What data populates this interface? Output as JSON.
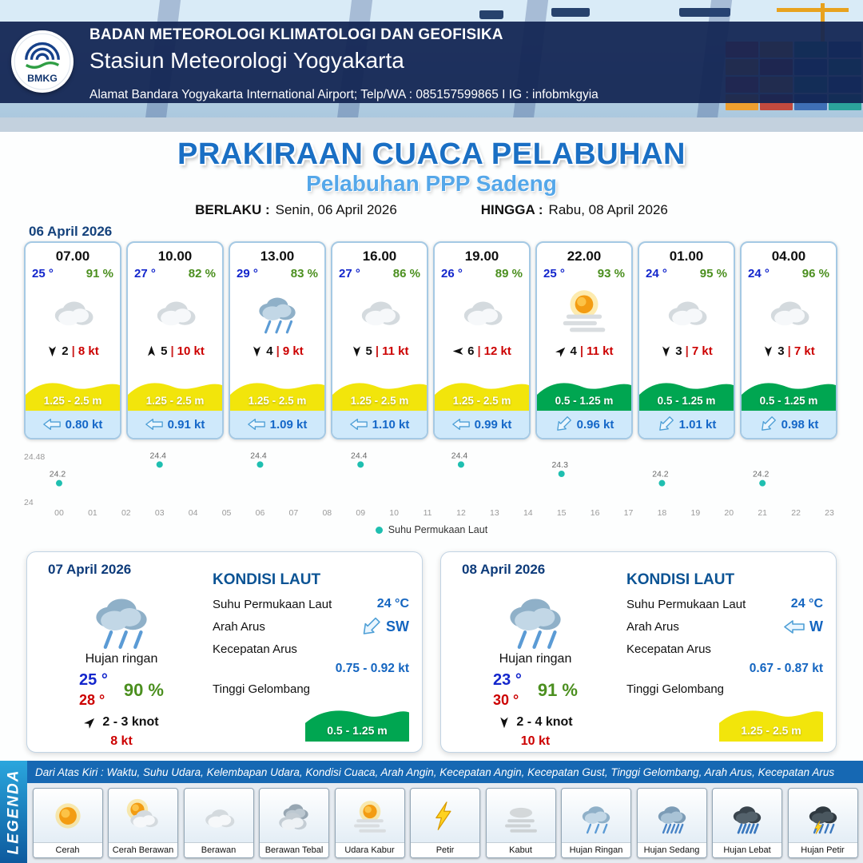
{
  "header": {
    "logo": "BMKG",
    "line1": "BADAN METEOROLOGI KLIMATOLOGI DAN GEOFISIKA",
    "line2": "Stasiun Meteorologi Yogyakarta",
    "line3": "Alamat Bandara Yogyakarta International Airport; Telp/WA : 085157599865 I IG : infobmkgyia"
  },
  "title": {
    "main": "PRAKIRAAN CUACA PELABUHAN",
    "subtitle": "Pelabuhan PPP Sadeng",
    "berlaku_label": "BERLAKU :",
    "berlaku_value": "Senin, 06 April 2026",
    "hingga_label": "HINGGA :",
    "hingga_value": "Rabu, 08 April 2026"
  },
  "ui": {
    "divider": "|"
  },
  "hourly_date": "06 April 2026",
  "hourly_cards": [
    {
      "time": "07.00",
      "temp": "25 °",
      "humidity": "91 %",
      "icon": "berawan",
      "wind_rot": 180,
      "gust": "2",
      "wind_speed": "8 kt",
      "wave": "1.25 - 2.5 m",
      "wave_color": "#f2e50b",
      "current": "0.80 kt",
      "current_rot": 0
    },
    {
      "time": "10.00",
      "temp": "27 °",
      "humidity": "82 %",
      "icon": "berawan",
      "wind_rot": 0,
      "gust": "5",
      "wind_speed": "10 kt",
      "wave": "1.25 - 2.5 m",
      "wave_color": "#f2e50b",
      "current": "0.91 kt",
      "current_rot": 0
    },
    {
      "time": "13.00",
      "temp": "29 °",
      "humidity": "83 %",
      "icon": "hujan-ringan",
      "wind_rot": 180,
      "gust": "4",
      "wind_speed": "9 kt",
      "wave": "1.25 - 2.5 m",
      "wave_color": "#f2e50b",
      "current": "1.09 kt",
      "current_rot": 0
    },
    {
      "time": "16.00",
      "temp": "27 °",
      "humidity": "86 %",
      "icon": "berawan",
      "wind_rot": 180,
      "gust": "5",
      "wind_speed": "11 kt",
      "wave": "1.25 - 2.5 m",
      "wave_color": "#f2e50b",
      "current": "1.10 kt",
      "current_rot": 0
    },
    {
      "time": "19.00",
      "temp": "26 °",
      "humidity": "89 %",
      "icon": "berawan",
      "wind_rot": 270,
      "gust": "6",
      "wind_speed": "12 kt",
      "wave": "1.25 - 2.5 m",
      "wave_color": "#f2e50b",
      "current": "0.99 kt",
      "current_rot": 0
    },
    {
      "time": "22.00",
      "temp": "25 °",
      "humidity": "93 %",
      "icon": "udara-kabur",
      "wind_rot": 45,
      "gust": "4",
      "wind_speed": "11 kt",
      "wave": "0.5 - 1.25 m",
      "wave_color": "#00a651",
      "current": "0.96 kt",
      "current_rot": -45
    },
    {
      "time": "01.00",
      "temp": "24 °",
      "humidity": "95 %",
      "icon": "berawan",
      "wind_rot": 180,
      "gust": "3",
      "wind_speed": "7 kt",
      "wave": "0.5 - 1.25 m",
      "wave_color": "#00a651",
      "current": "1.01 kt",
      "current_rot": -45
    },
    {
      "time": "04.00",
      "temp": "24 °",
      "humidity": "96 %",
      "icon": "berawan",
      "wind_rot": 180,
      "gust": "3",
      "wind_speed": "7 kt",
      "wave": "0.5 - 1.25 m",
      "wave_color": "#00a651",
      "current": "0.98 kt",
      "current_rot": -45
    }
  ],
  "chart_data": {
    "type": "scatter",
    "series_name": "Suhu Permukaan Laut",
    "x": [
      0,
      3,
      6,
      9,
      12,
      15,
      18,
      21
    ],
    "values": [
      24.2,
      24.4,
      24.4,
      24.4,
      24.4,
      24.3,
      24.2,
      24.2
    ],
    "x_ticks": [
      "00",
      "01",
      "02",
      "03",
      "04",
      "05",
      "06",
      "07",
      "08",
      "09",
      "10",
      "11",
      "12",
      "13",
      "14",
      "15",
      "16",
      "17",
      "18",
      "19",
      "20",
      "21",
      "22",
      "23"
    ],
    "ylim": [
      24,
      24.48
    ],
    "point_color": "#1fbfb0",
    "grid": false,
    "legend_position": "bottom-center"
  },
  "daily_cards": [
    {
      "date": "07 April 2026",
      "icon": "hujan-ringan",
      "condition": "Hujan ringan",
      "temp_min": "25 °",
      "temp_max": "28 °",
      "humidity": "90 %",
      "wind_rot": 45,
      "wind_range": "2  - 3 knot",
      "gust": "8 kt",
      "sea": {
        "title": "KONDISI LAUT",
        "sst_label": "Suhu Permukaan Laut",
        "sst": "24 °C",
        "current_dir_label": "Arah Arus",
        "current_dir": "SW",
        "current_rot": -45,
        "current_speed_label": "Kecepatan Arus",
        "current_speed": "0.75 - 0.92 kt",
        "wave_label": "Tinggi Gelombang",
        "wave": "0.5 - 1.25 m",
        "wave_color": "#00a651"
      }
    },
    {
      "date": "08 April 2026",
      "icon": "hujan-ringan",
      "condition": "Hujan ringan",
      "temp_min": "23 °",
      "temp_max": "30 °",
      "humidity": "91 %",
      "wind_rot": 180,
      "wind_range": "2  - 4 knot",
      "gust": "10 kt",
      "sea": {
        "title": "KONDISI LAUT",
        "sst_label": "Suhu Permukaan Laut",
        "sst": "24 °C",
        "current_dir_label": "Arah Arus",
        "current_dir": "W",
        "current_rot": 0,
        "current_speed_label": "Kecepatan Arus",
        "current_speed": "0.67 - 0.87 kt",
        "wave_label": "Tinggi Gelombang",
        "wave": "1.25 - 2.5 m",
        "wave_color": "#f2e50b"
      }
    }
  ],
  "legend": {
    "title": "LEGENDA",
    "strip": "Dari Atas Kiri : Waktu, Suhu Udara, Kelembapan Udara, Kondisi Cuaca, Arah Angin, Kecepatan Angin, Kecepatan Gust, Tinggi Gelombang, Arah Arus, Kecepatan Arus",
    "items": [
      {
        "label": "Cerah",
        "icon": "cerah"
      },
      {
        "label": "Cerah Berawan",
        "icon": "cerah-berawan"
      },
      {
        "label": "Berawan",
        "icon": "berawan"
      },
      {
        "label": "Berawan Tebal",
        "icon": "berawan-tebal"
      },
      {
        "label": "Udara Kabur",
        "icon": "udara-kabur"
      },
      {
        "label": "Petir",
        "icon": "petir"
      },
      {
        "label": "Kabut",
        "icon": "kabut"
      },
      {
        "label": "Hujan Ringan",
        "icon": "hujan-ringan"
      },
      {
        "label": "Hujan Sedang",
        "icon": "hujan-sedang"
      },
      {
        "label": "Hujan Lebat",
        "icon": "hujan-lebat"
      },
      {
        "label": "Hujan Petir",
        "icon": "hujan-petir"
      }
    ]
  }
}
